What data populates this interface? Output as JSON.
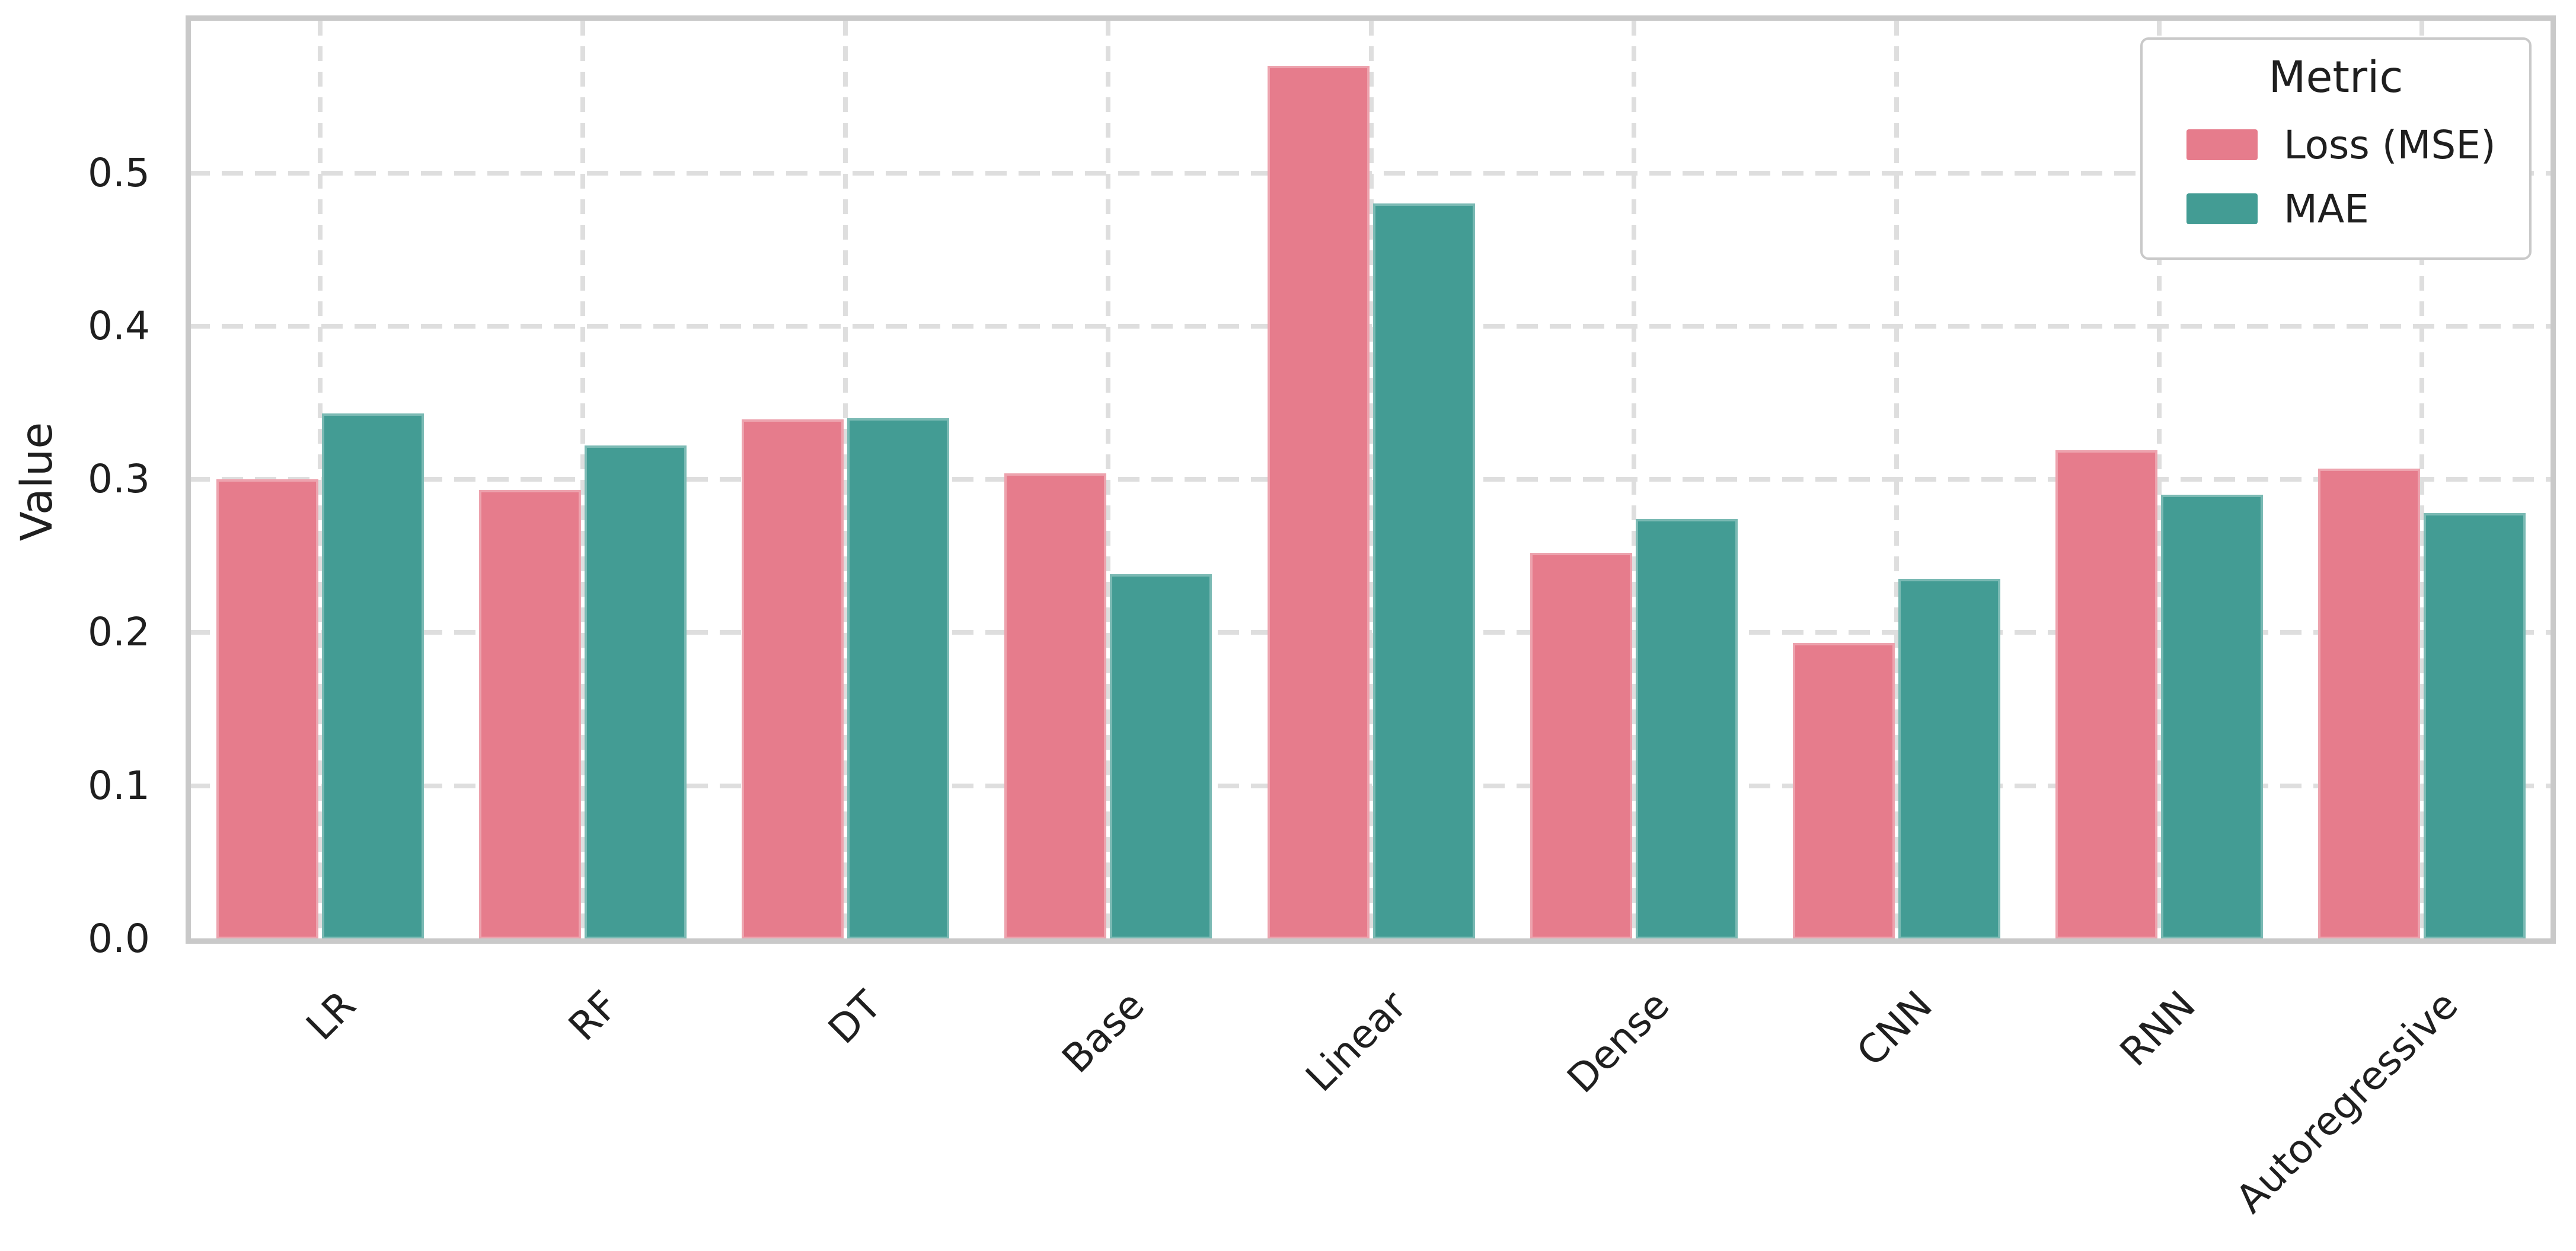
{
  "chart_data": {
    "type": "bar",
    "title": "",
    "xlabel": "",
    "ylabel": "Value",
    "categories": [
      "LR",
      "RF",
      "DT",
      "Base",
      "Linear",
      "Dense",
      "CNN",
      "RNN",
      "Autoregressive"
    ],
    "series": [
      {
        "name": "Loss (MSE)",
        "color": "#e67c8c",
        "values": [
          0.3,
          0.293,
          0.339,
          0.304,
          0.57,
          0.252,
          0.193,
          0.319,
          0.307
        ]
      },
      {
        "name": "MAE",
        "color": "#439c94",
        "values": [
          0.343,
          0.322,
          0.34,
          0.238,
          0.48,
          0.274,
          0.235,
          0.29,
          0.278
        ]
      }
    ],
    "ylim": [
      0.0,
      0.6
    ],
    "yticks": [
      "0.0",
      "0.1",
      "0.2",
      "0.3",
      "0.4",
      "0.5"
    ],
    "ytick_values": [
      0.0,
      0.1,
      0.2,
      0.3,
      0.4,
      0.5
    ],
    "legend": {
      "title": "Metric",
      "position": "upper right"
    },
    "grid": {
      "style": "dashed",
      "horizontal": true,
      "vertical": true,
      "color": "#dedede"
    },
    "spine_color": "#c9c9c9",
    "text_color": "#1f1f1f",
    "background_color": "#ffffff"
  }
}
